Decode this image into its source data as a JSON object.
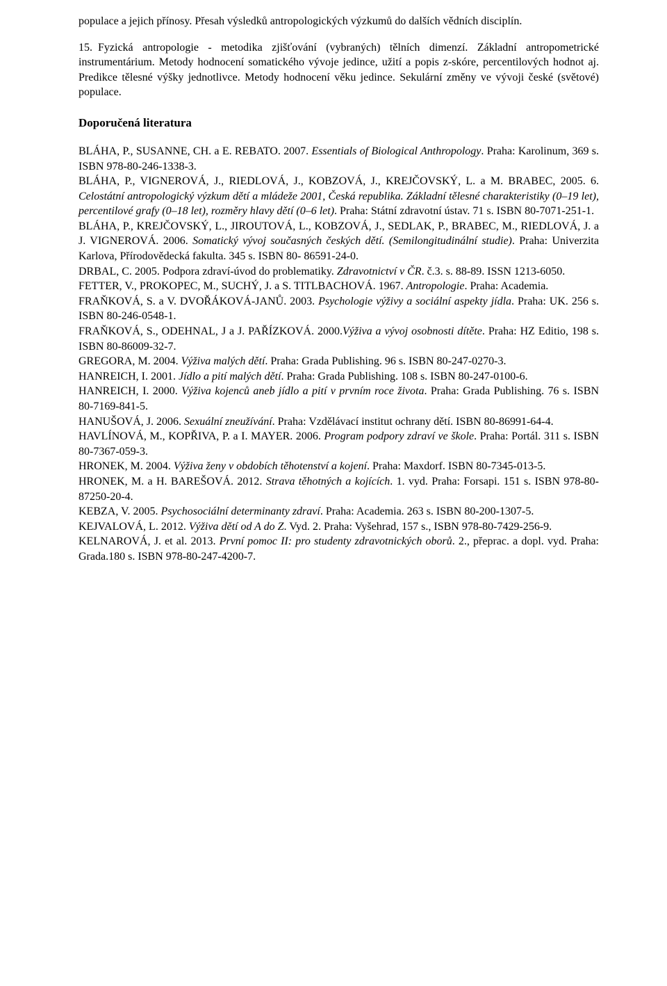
{
  "intro": {
    "p1": "populace a jejich přínosy. Přesah výsledků antropologických výzkumů do dalších vědních disciplín.",
    "p2_num": "15.",
    "p2_text": "Fyzická antropologie - metodika zjišťování (vybraných) tělních dimenzí. Základní antropometrické instrumentárium. Metody hodnocení somatického vývoje jedince, užití a popis z-skóre, percentilových  hodnot aj. Predikce tělesné výšky jednotlivce. Metody hodnocení věku jedince. Sekulární změny ve vývoji české (světové) populace."
  },
  "heading": "Doporučená literatura",
  "refs": {
    "r1a": "BLÁHA, P., SUSANNE, CH. a E. REBATO. 2007. ",
    "r1i": "Essentials of Biological Anthropology",
    "r1b": ". Praha: Karolinum, 369 s. ISBN 978-80-246-1338-3.",
    "r2a": "BLÁHA, P., VIGNEROVÁ, J., RIEDLOVÁ, J., KOBZOVÁ, J., KREJČOVSKÝ, L. a M. BRABEC, 2005. 6. ",
    "r2i": "Celostátní antropologický výzkum dětí a mládeže 2001, Česká republika. Základní tělesné charakteristiky (0–19 let), percentilové grafy (0–18 let), rozměry hlavy dětí (0–6 let)",
    "r2b": ". Praha: Státní zdravotní ústav. 71 s. ISBN 80-7071-251-1.",
    "r3a": "BLÁHA, P., KREJČOVSKÝ, L., JIROUTOVÁ, L., KOBZOVÁ, J., SEDLAK, P., BRABEC, M., RIEDLOVÁ, J. a J. VIGNEROVÁ. 2006. ",
    "r3i": "Somatický vývoj současných českých dětí. (Semilongitudinální studie)",
    "r3b": ". Praha: Univerzita Karlova, Přírodovědecká fakulta. 345 s. ISBN 80- 86591-24-0.",
    "r4a": "DRBAL, C. 2005. Podpora zdraví-úvod do problematiky. ",
    "r4i": "Zdravotnictví v ČR",
    "r4b": ". č.3. s. 88-89. ISSN 1213-6050.",
    "r5a": "FETTER, V., PROKOPEC, M., SUCHÝ, J. a S. TITLBACHOVÁ. 1967. ",
    "r5i": "Antropologie",
    "r5b": ". Praha: Academia.",
    "r6a": "FRAŇKOVÁ, S. a V. DVOŘÁKOVÁ-JANŮ. 2003. ",
    "r6i": "Psychologie výživy a sociální aspekty jídla",
    "r6b": ". Praha: UK. 256 s. ISBN 80-246-0548-1.",
    "r7a": "FRAŇKOVÁ, S., ODEHNAL, J a  J. PAŘÍZKOVÁ.  2000.",
    "r7i": "Výživa a vývoj osobnosti dítěte",
    "r7b": ". Praha: HZ Editio, 198 s. ISBN 80-86009-32-7.",
    "r8a": "GREGORA, M. 2004. ",
    "r8i": "Výživa malých dětí",
    "r8b": ". Praha: Grada Publishing. 96 s. ISBN 80-247-0270-3.",
    "r9a": "HANREICH, I. 2001. ",
    "r9i": "Jídlo a pití malých dětí",
    "r9b": ". Praha: Grada Publishing. 108 s. ISBN 80-247-0100-6.",
    "r10a": "HANREICH, I. 2000. ",
    "r10i": "Výživa kojenců aneb jídlo a pití v prvním roce života",
    "r10b": ". Praha: Grada Publishing. 76 s. ISBN 80-7169-841-5.",
    "r11a": "HANUŠOVÁ, J. 2006. ",
    "r11i": "Sexuální zneužívání",
    "r11b": ". Praha: Vzdělávací institut ochrany dětí. ISBN 80-86991-64-4.",
    "r12a": "HAVLÍNOVÁ, M., KOPŘIVA, P. a I. MAYER.  2006.  ",
    "r12i": "Program podpory zdraví ve škole",
    "r12b": ". Praha: Portál. 311 s. ISBN 80-7367-059-3.",
    "r13a": "HRONEK, M. 2004. ",
    "r13i": "Výživa ženy v obdobích těhotenství a kojení",
    "r13b": ". Praha: Maxdorf.  ISBN 80-7345-013-5.",
    "r14a": "HRONEK, M. a H. BAREŠOVÁ. 2012. ",
    "r14i": "Strava těhotných a kojících",
    "r14b": ". 1. vyd. Praha: Forsapi. 151 s. ISBN 978-80-87250-20-4.",
    "r15a": "KEBZA, V. 2005. ",
    "r15i": "Psychosociální determinanty zdraví",
    "r15b": ". Praha: Academia. 263 s. ISBN 80-200-1307-5.",
    "r16a": "KEJVALOVÁ, L. 2012. ",
    "r16i": "Výživa dětí od A do Z",
    "r16b": ". Vyd. 2. Praha: Vyšehrad, 157 s., ISBN 978-80-7429-256-9.",
    "r17a": "KELNAROVÁ, J. et al. 2013. ",
    "r17i": "První pomoc II: pro studenty zdravotnických oborů",
    "r17b": ". 2., přeprac. a dopl. vyd. Praha: Grada.180 s. ISBN 978-80-247-4200-7."
  }
}
